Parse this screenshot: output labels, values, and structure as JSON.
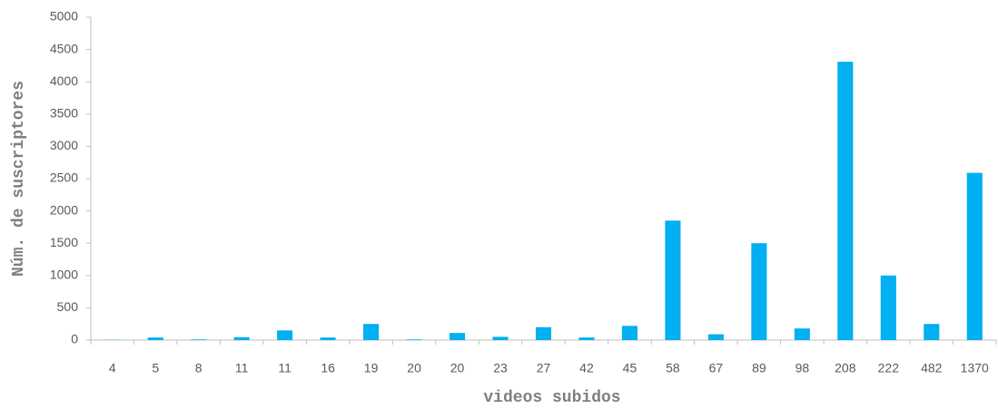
{
  "chart_data": {
    "type": "bar",
    "xlabel": "videos subidos",
    "ylabel": "Núm. de suscriptores",
    "categories": [
      "4",
      "5",
      "8",
      "11",
      "11",
      "16",
      "19",
      "20",
      "20",
      "23",
      "27",
      "42",
      "45",
      "58",
      "67",
      "89",
      "98",
      "208",
      "222",
      "482",
      "1370"
    ],
    "values": [
      5,
      40,
      10,
      45,
      150,
      40,
      250,
      10,
      110,
      50,
      200,
      40,
      220,
      1850,
      90,
      1500,
      180,
      4310,
      1000,
      250,
      2590
    ],
    "color": "#00b0f0",
    "ylim": [
      0,
      5000
    ],
    "yticks": [
      0,
      500,
      1000,
      1500,
      2000,
      2500,
      3000,
      3500,
      4000,
      4500,
      5000
    ],
    "grid": false
  }
}
